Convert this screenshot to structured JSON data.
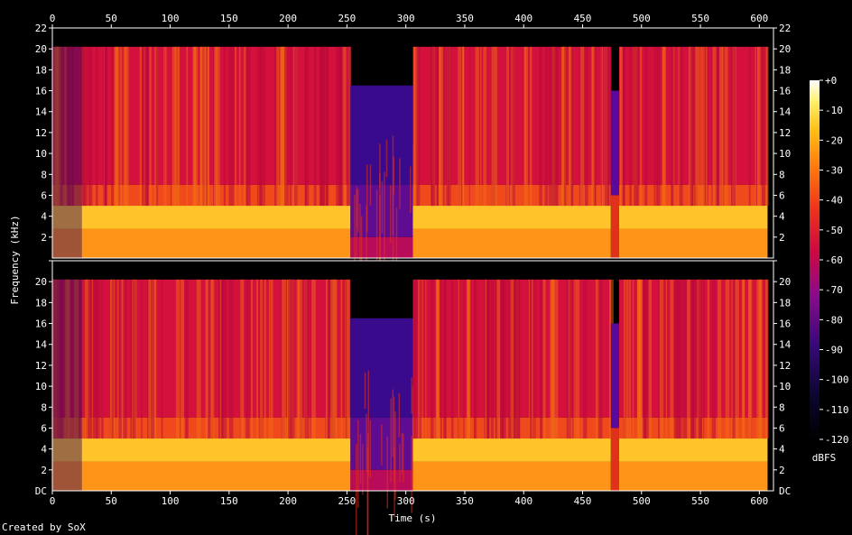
{
  "footer": {
    "credit": "Created by SoX"
  },
  "chart_data": {
    "type": "heatmap",
    "xlabel": "Time (s)",
    "ylabel": "Frequency (kHz)",
    "x_ticks": [
      "0",
      "50",
      "100",
      "150",
      "200",
      "250",
      "300",
      "350",
      "400",
      "450",
      "500",
      "550",
      "600"
    ],
    "y_ticks": [
      "22",
      "20",
      "18",
      "16",
      "14",
      "12",
      "10",
      "8",
      "6",
      "4",
      "2"
    ],
    "y_bottom_label": "DC",
    "xlim": [
      0,
      612
    ],
    "ylim_khz": [
      0,
      22
    ],
    "channels": 2,
    "colorbar": {
      "label": "dBFS",
      "ticks": [
        "+0",
        "-10",
        "-20",
        "-30",
        "-40",
        "-50",
        "-60",
        "-70",
        "-80",
        "-90",
        "-100",
        "-110",
        "-120"
      ],
      "range": [
        -120,
        0
      ]
    },
    "segments": [
      {
        "t": [
          0,
          25
        ],
        "cutoff_khz": 20.2,
        "level": "sparse"
      },
      {
        "t": [
          25,
          253
        ],
        "cutoff_khz": 20.2,
        "level": "loud"
      },
      {
        "t": [
          253,
          306
        ],
        "cutoff_khz": 16.5,
        "level": "quiet"
      },
      {
        "t": [
          306,
          474
        ],
        "cutoff_khz": 20.2,
        "level": "loud"
      },
      {
        "t": [
          474,
          481
        ],
        "cutoff_khz": 16.0,
        "level": "fade"
      },
      {
        "t": [
          481,
          607
        ],
        "cutoff_khz": 20.2,
        "level": "loud"
      }
    ]
  }
}
